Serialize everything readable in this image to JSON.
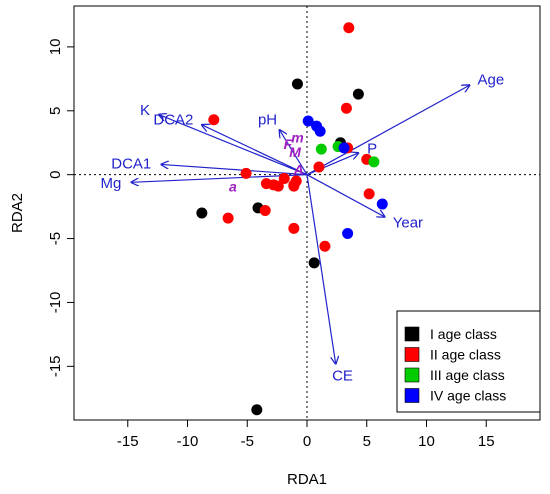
{
  "chart_data": {
    "type": "scatter",
    "xlabel": "RDA1",
    "ylabel": "RDA2",
    "xlim": [
      -19.5,
      19.5
    ],
    "ylim": [
      -19.2,
      13.2
    ],
    "xticks": [
      -15,
      -10,
      -5,
      0,
      5,
      10,
      15
    ],
    "yticks": [
      -15,
      -10,
      -5,
      0,
      5,
      10
    ],
    "xtick_labels": [
      "-15",
      "-10",
      "-5",
      "0",
      "5",
      "10",
      "15"
    ],
    "ytick_labels": [
      "-15",
      "-10",
      "-5",
      "0",
      "5",
      "10"
    ],
    "reference_lines": "dotted lines at x=0 and y=0",
    "legend_position": "bottom-right",
    "series": [
      {
        "name": "I age class",
        "color": "#000000",
        "points": [
          [
            -0.8,
            7.1
          ],
          [
            4.3,
            6.3
          ],
          [
            2.8,
            2.5
          ],
          [
            -8.8,
            -3.0
          ],
          [
            -4.1,
            -2.6
          ],
          [
            0.6,
            -6.9
          ],
          [
            -4.2,
            -18.4
          ]
        ]
      },
      {
        "name": "II age class",
        "color": "#ff0000",
        "points": [
          [
            3.5,
            11.5
          ],
          [
            3.3,
            5.2
          ],
          [
            -7.8,
            4.3
          ],
          [
            3.4,
            2.1
          ],
          [
            5.0,
            1.2
          ],
          [
            1.0,
            0.6
          ],
          [
            -5.1,
            0.1
          ],
          [
            -1.9,
            -0.3
          ],
          [
            -3.4,
            -0.7
          ],
          [
            -2.8,
            -0.8
          ],
          [
            -1.1,
            -0.8
          ],
          [
            -0.9,
            -0.5
          ],
          [
            -2.4,
            -0.9
          ],
          [
            -1.1,
            -0.9
          ],
          [
            5.2,
            -1.5
          ],
          [
            -3.5,
            -2.8
          ],
          [
            -6.6,
            -3.4
          ],
          [
            -1.1,
            -4.2
          ],
          [
            1.5,
            -5.6
          ]
        ]
      },
      {
        "name": "III age class",
        "color": "#00cc00",
        "points": [
          [
            1.2,
            2.0
          ],
          [
            2.6,
            2.2
          ],
          [
            5.6,
            1.0
          ]
        ]
      },
      {
        "name": "IV age class",
        "color": "#0000ff",
        "points": [
          [
            0.1,
            4.2
          ],
          [
            0.8,
            3.8
          ],
          [
            1.1,
            3.4
          ],
          [
            3.1,
            2.1
          ],
          [
            6.3,
            -2.3
          ],
          [
            3.4,
            -4.6
          ]
        ]
      }
    ],
    "arrows": [
      {
        "label": "Age",
        "x": 13.6,
        "y": 7.0
      },
      {
        "label": "K",
        "x": -12.4,
        "y": 4.7
      },
      {
        "label": "DCA2",
        "x": -8.8,
        "y": 3.9
      },
      {
        "label": "pH",
        "x": -2.3,
        "y": 3.5
      },
      {
        "label": "P",
        "x": 4.3,
        "y": 1.7
      },
      {
        "label": "DCA1",
        "x": -12.2,
        "y": 0.8
      },
      {
        "label": "Mg",
        "x": -14.7,
        "y": -0.6
      },
      {
        "label": "Year",
        "x": 6.5,
        "y": -3.3
      },
      {
        "label": "CE",
        "x": 2.4,
        "y": -14.8
      }
    ],
    "species_labels": [
      {
        "label": "m",
        "x": -0.8,
        "y": 2.5
      },
      {
        "label": "F",
        "x": -1.6,
        "y": 2.0
      },
      {
        "label": "M",
        "x": -1.0,
        "y": 1.4
      },
      {
        "label": "A",
        "x": -0.7,
        "y": 0.0
      },
      {
        "label": "a",
        "x": -6.2,
        "y": -1.3
      }
    ]
  }
}
